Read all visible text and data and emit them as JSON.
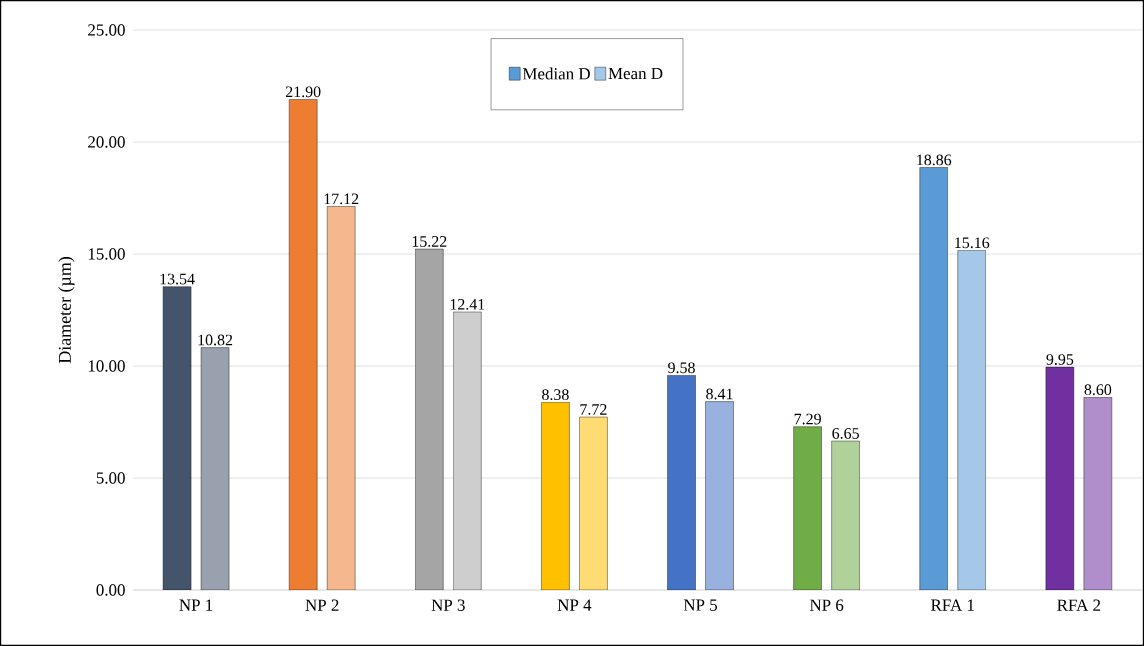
{
  "chart_data": {
    "type": "bar",
    "ylabel": "Diameter (µm)",
    "categories": [
      "NP 1",
      "NP 2",
      "NP 3",
      "NP 4",
      "NP 5",
      "NP 6",
      "RFA 1",
      "RFA 2"
    ],
    "series": [
      {
        "name": "Median D",
        "color": "#5b9bd5",
        "colors": [
          "#44546a",
          "#ed7d31",
          "#a5a5a5",
          "#ffc000",
          "#4472c4",
          "#70ad47",
          "#5b9bd5",
          "#7030a0"
        ],
        "values": [
          13.54,
          21.9,
          15.22,
          8.38,
          9.58,
          7.29,
          18.86,
          9.95
        ],
        "value_labels": [
          "13.54",
          "21.90",
          "15.22",
          "8.38",
          "9.58",
          "7.29",
          "18.86",
          "9.95"
        ]
      },
      {
        "name": "Mean D",
        "color": "#a5c8e8",
        "colors": [
          "#98a1ad",
          "#f5b88e",
          "#cecece",
          "#ffdc73",
          "#98b1df",
          "#b0d29a",
          "#a5c8e8",
          "#b08dcb"
        ],
        "values": [
          10.82,
          17.12,
          12.41,
          7.72,
          8.41,
          6.65,
          15.16,
          8.6
        ],
        "value_labels": [
          "10.82",
          "17.12",
          "12.41",
          "7.72",
          "8.41",
          "6.65",
          "15.16",
          "8.60"
        ]
      }
    ],
    "ylim": [
      0,
      25
    ],
    "yticks": [
      {
        "value": 0,
        "label": "0.00"
      },
      {
        "value": 5,
        "label": "5.00"
      },
      {
        "value": 10,
        "label": "10.00"
      },
      {
        "value": 15,
        "label": "15.00"
      },
      {
        "value": 20,
        "label": "20.00"
      },
      {
        "value": 25,
        "label": "25.00"
      }
    ],
    "grid": "y",
    "legend": "top",
    "data_labels": true
  }
}
